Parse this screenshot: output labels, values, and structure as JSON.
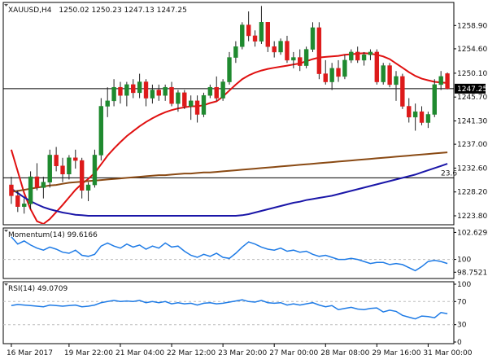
{
  "chart_data": [
    {
      "type": "candlestick",
      "pane": "price",
      "header": {
        "symbol": "XAUUSD,H4",
        "ohlc": "1250.02 1250.23 1247.13 1247.25"
      },
      "ylim": [
        1222.3,
        1263.0
      ],
      "y_ticks": [
        "1258.90",
        "1254.60",
        "1250.10",
        "1245.70",
        "1241.30",
        "1237.00",
        "1232.60",
        "1228.20",
        "1223.80"
      ],
      "current_price": {
        "label": "1247.25",
        "value": 1247.25
      },
      "fib_level": {
        "label": "23.6",
        "value": 1230.8
      },
      "colors": {
        "bull": "#1f8a2f",
        "bear": "#dd1a1a",
        "ma20": "#e01010",
        "ma100": "#1a16a8",
        "ma200": "#8a4a14",
        "line": "#000000",
        "grid": "#bdbdbd"
      },
      "candles": [
        [
          1229.5,
          1231.0,
          1226.0,
          1227.5
        ],
        [
          1227.5,
          1228.5,
          1224.5,
          1225.5
        ],
        [
          1225.5,
          1227.0,
          1224.2,
          1226.0
        ],
        [
          1226.0,
          1232.0,
          1225.0,
          1231.0
        ],
        [
          1231.0,
          1233.5,
          1228.5,
          1229.0
        ],
        [
          1229.0,
          1231.0,
          1227.0,
          1230.0
        ],
        [
          1230.0,
          1236.0,
          1229.0,
          1235.0
        ],
        [
          1235.0,
          1236.5,
          1232.0,
          1233.0
        ],
        [
          1233.0,
          1234.5,
          1230.0,
          1231.5
        ],
        [
          1231.5,
          1235.0,
          1230.5,
          1234.5
        ],
        [
          1234.5,
          1236.0,
          1232.5,
          1234.0
        ],
        [
          1234.0,
          1234.5,
          1227.0,
          1228.5
        ],
        [
          1228.5,
          1230.0,
          1226.5,
          1229.5
        ],
        [
          1229.5,
          1236.0,
          1229.0,
          1235.0
        ],
        [
          1235.0,
          1245.5,
          1234.0,
          1244.0
        ],
        [
          1244.0,
          1247.5,
          1242.0,
          1245.0
        ],
        [
          1245.0,
          1249.0,
          1244.0,
          1247.5
        ],
        [
          1247.5,
          1248.5,
          1244.5,
          1246.0
        ],
        [
          1246.0,
          1248.5,
          1244.0,
          1248.0
        ],
        [
          1248.0,
          1249.0,
          1245.5,
          1246.5
        ],
        [
          1246.5,
          1250.0,
          1245.5,
          1248.5
        ],
        [
          1248.5,
          1249.0,
          1244.0,
          1245.5
        ],
        [
          1245.5,
          1248.0,
          1244.5,
          1247.0
        ],
        [
          1247.0,
          1248.0,
          1245.0,
          1246.0
        ],
        [
          1246.0,
          1248.0,
          1245.0,
          1247.5
        ],
        [
          1247.5,
          1248.5,
          1244.0,
          1244.5
        ],
        [
          1244.5,
          1247.0,
          1243.0,
          1246.5
        ],
        [
          1246.5,
          1247.0,
          1243.5,
          1244.0
        ],
        [
          1244.0,
          1246.0,
          1241.5,
          1245.0
        ],
        [
          1245.0,
          1246.0,
          1241.0,
          1242.5
        ],
        [
          1242.5,
          1246.5,
          1242.0,
          1246.0
        ],
        [
          1246.0,
          1248.0,
          1245.5,
          1247.5
        ],
        [
          1247.5,
          1249.5,
          1245.0,
          1245.5
        ],
        [
          1245.5,
          1249.0,
          1245.0,
          1248.5
        ],
        [
          1248.5,
          1254.0,
          1248.0,
          1253.0
        ],
        [
          1253.0,
          1256.0,
          1252.0,
          1255.0
        ],
        [
          1255.0,
          1259.5,
          1254.5,
          1259.0
        ],
        [
          1259.0,
          1261.5,
          1256.0,
          1257.0
        ],
        [
          1257.0,
          1258.0,
          1255.0,
          1256.0
        ],
        [
          1256.0,
          1262.5,
          1255.5,
          1259.5
        ],
        [
          1259.5,
          1259.5,
          1254.0,
          1255.0
        ],
        [
          1255.0,
          1256.0,
          1253.0,
          1254.0
        ],
        [
          1254.0,
          1256.5,
          1253.5,
          1256.0
        ],
        [
          1256.0,
          1257.0,
          1252.0,
          1252.5
        ],
        [
          1252.5,
          1254.0,
          1251.0,
          1253.0
        ],
        [
          1253.0,
          1254.5,
          1250.5,
          1251.5
        ],
        [
          1251.5,
          1255.0,
          1251.0,
          1254.5
        ],
        [
          1254.5,
          1259.5,
          1254.0,
          1258.5
        ],
        [
          1258.5,
          1259.5,
          1249.0,
          1250.0
        ],
        [
          1250.0,
          1252.5,
          1248.0,
          1248.5
        ],
        [
          1248.5,
          1252.0,
          1247.0,
          1251.0
        ],
        [
          1251.0,
          1252.5,
          1248.5,
          1249.5
        ],
        [
          1249.5,
          1253.5,
          1249.0,
          1252.5
        ],
        [
          1252.5,
          1254.5,
          1252.0,
          1254.0
        ],
        [
          1254.0,
          1255.0,
          1252.0,
          1252.5
        ],
        [
          1252.5,
          1254.0,
          1251.5,
          1253.5
        ],
        [
          1253.5,
          1254.5,
          1252.5,
          1254.0
        ],
        [
          1254.0,
          1254.5,
          1248.0,
          1248.5
        ],
        [
          1248.5,
          1252.0,
          1248.0,
          1251.5
        ],
        [
          1251.5,
          1252.0,
          1247.5,
          1248.0
        ],
        [
          1248.0,
          1250.5,
          1245.0,
          1249.5
        ],
        [
          1249.5,
          1250.0,
          1243.5,
          1244.0
        ],
        [
          1244.0,
          1245.5,
          1241.0,
          1242.0
        ],
        [
          1242.0,
          1244.5,
          1239.5,
          1243.0
        ],
        [
          1243.0,
          1244.0,
          1240.5,
          1241.0
        ],
        [
          1241.0,
          1243.0,
          1240.0,
          1242.5
        ],
        [
          1242.5,
          1249.0,
          1242.0,
          1248.0
        ],
        [
          1248.0,
          1250.5,
          1247.0,
          1249.5
        ],
        [
          1250.02,
          1250.23,
          1247.13,
          1247.25
        ]
      ],
      "series": [
        {
          "name": "",
          "role": "ma20",
          "values": [
            1236.0,
            1232.0,
            1228.0,
            1225.0,
            1222.8,
            1222.3,
            1223.2,
            1224.5,
            1225.8,
            1227.2,
            1228.6,
            1229.7,
            1230.6,
            1231.7,
            1233.3,
            1234.9,
            1236.2,
            1237.4,
            1238.5,
            1239.4,
            1240.3,
            1241.1,
            1241.8,
            1242.4,
            1242.9,
            1243.3,
            1243.6,
            1243.8,
            1244.0,
            1244.0,
            1244.2,
            1244.6,
            1244.9,
            1245.8,
            1246.9,
            1248.0,
            1249.0,
            1249.7,
            1250.2,
            1250.6,
            1250.9,
            1251.1,
            1251.3,
            1251.5,
            1251.7,
            1251.9,
            1252.3,
            1252.7,
            1253.0,
            1253.1,
            1253.2,
            1253.3,
            1253.5,
            1253.6,
            1253.7,
            1253.8,
            1253.7,
            1253.5,
            1253.2,
            1252.7,
            1251.9,
            1251.1,
            1250.3,
            1249.6,
            1249.1,
            1248.8,
            1248.5,
            1248.4,
            1248.3
          ]
        },
        {
          "name": "",
          "role": "ma100",
          "values": [
            1228.8,
            1228.0,
            1227.2,
            1226.5,
            1225.9,
            1225.4,
            1225.0,
            1224.7,
            1224.4,
            1224.2,
            1224.0,
            1223.9,
            1223.8,
            1223.8,
            1223.8,
            1223.8,
            1223.8,
            1223.8,
            1223.8,
            1223.8,
            1223.8,
            1223.8,
            1223.8,
            1223.8,
            1223.8,
            1223.8,
            1223.8,
            1223.8,
            1223.8,
            1223.8,
            1223.8,
            1223.8,
            1223.8,
            1223.8,
            1223.8,
            1223.8,
            1223.9,
            1224.1,
            1224.4,
            1224.7,
            1225.0,
            1225.3,
            1225.6,
            1225.9,
            1226.2,
            1226.4,
            1226.7,
            1226.9,
            1227.1,
            1227.3,
            1227.5,
            1227.8,
            1228.1,
            1228.4,
            1228.7,
            1229.0,
            1229.3,
            1229.6,
            1229.9,
            1230.2,
            1230.5,
            1230.8,
            1231.1,
            1231.4,
            1231.8,
            1232.2,
            1232.6,
            1233.0,
            1233.4
          ]
        },
        {
          "name": "",
          "role": "ma200",
          "values": [
            1228.2,
            1228.4,
            1228.6,
            1228.8,
            1229.0,
            1229.2,
            1229.4,
            1229.5,
            1229.7,
            1229.9,
            1230.0,
            1230.1,
            1230.2,
            1230.3,
            1230.4,
            1230.5,
            1230.6,
            1230.7,
            1230.8,
            1230.9,
            1231.0,
            1231.1,
            1231.2,
            1231.3,
            1231.3,
            1231.4,
            1231.5,
            1231.6,
            1231.6,
            1231.7,
            1231.8,
            1231.8,
            1231.9,
            1232.0,
            1232.1,
            1232.2,
            1232.3,
            1232.4,
            1232.5,
            1232.6,
            1232.7,
            1232.8,
            1232.9,
            1233.0,
            1233.1,
            1233.2,
            1233.3,
            1233.4,
            1233.5,
            1233.6,
            1233.7,
            1233.8,
            1233.9,
            1234.0,
            1234.1,
            1234.2,
            1234.3,
            1234.4,
            1234.5,
            1234.6,
            1234.7,
            1234.8,
            1234.9,
            1235.0,
            1235.1,
            1235.2,
            1235.3,
            1235.4,
            1235.5
          ]
        }
      ]
    },
    {
      "type": "line",
      "pane": "momentum",
      "header": "Momentum(14) 99.6166",
      "ylim": [
        98.3,
        102.9
      ],
      "y_ticks": [
        "102.6292",
        "100",
        "98.7521"
      ],
      "reference_level": 100,
      "colors": {
        "line": "#1e7be6",
        "reference": "#bdbdbd"
      },
      "series": [
        {
          "name": "",
          "values": [
            102.2,
            101.5,
            101.8,
            101.4,
            101.1,
            100.9,
            101.2,
            101.0,
            100.7,
            100.6,
            100.9,
            100.4,
            100.3,
            100.5,
            101.3,
            101.6,
            101.3,
            101.1,
            101.5,
            101.2,
            101.4,
            101.0,
            101.3,
            101.1,
            101.6,
            101.2,
            101.3,
            100.8,
            100.4,
            100.2,
            100.5,
            100.3,
            100.6,
            100.2,
            100.1,
            100.6,
            101.2,
            101.7,
            101.5,
            101.2,
            101.0,
            100.9,
            101.1,
            100.8,
            100.9,
            100.7,
            100.8,
            100.5,
            100.3,
            100.4,
            100.2,
            100.0,
            100.0,
            100.1,
            100.0,
            99.8,
            99.6,
            99.7,
            99.7,
            99.5,
            99.6,
            99.5,
            99.2,
            98.9,
            99.3,
            99.8,
            99.9,
            99.8,
            99.6
          ]
        }
      ]
    },
    {
      "type": "line",
      "pane": "rsi",
      "header": "RSI(14) 49.0709",
      "ylim": [
        0,
        100
      ],
      "y_ticks": [
        "100",
        "70",
        "30",
        "0"
      ],
      "levels": [
        70,
        30
      ],
      "colors": {
        "line": "#1e7be6",
        "reference": "#bdbdbd"
      },
      "series": [
        {
          "name": "",
          "values": [
            63,
            65,
            64,
            63,
            62,
            61,
            64,
            63,
            62,
            63,
            64,
            61,
            62,
            64,
            68,
            70,
            72,
            70,
            71,
            70,
            72,
            68,
            70,
            68,
            70,
            66,
            68,
            66,
            67,
            64,
            67,
            68,
            66,
            67,
            69,
            71,
            73,
            70,
            69,
            72,
            68,
            67,
            68,
            64,
            66,
            64,
            66,
            68,
            64,
            61,
            63,
            56,
            58,
            60,
            57,
            56,
            58,
            59,
            52,
            55,
            53,
            46,
            43,
            40,
            45,
            44,
            42,
            51,
            49
          ]
        }
      ]
    }
  ],
  "x_axis": {
    "labels": [
      "16 Mar 2017",
      "19 Mar 22:00",
      "21 Mar 04:00",
      "22 Mar 12:00",
      "23 Mar 20:00",
      "27 Mar 00:00",
      "28 Mar 08:00",
      "29 Mar 16:00",
      "31 Mar 00:00"
    ],
    "label_bar_index": [
      0,
      9,
      17,
      25,
      33,
      41,
      49,
      57,
      65
    ]
  }
}
